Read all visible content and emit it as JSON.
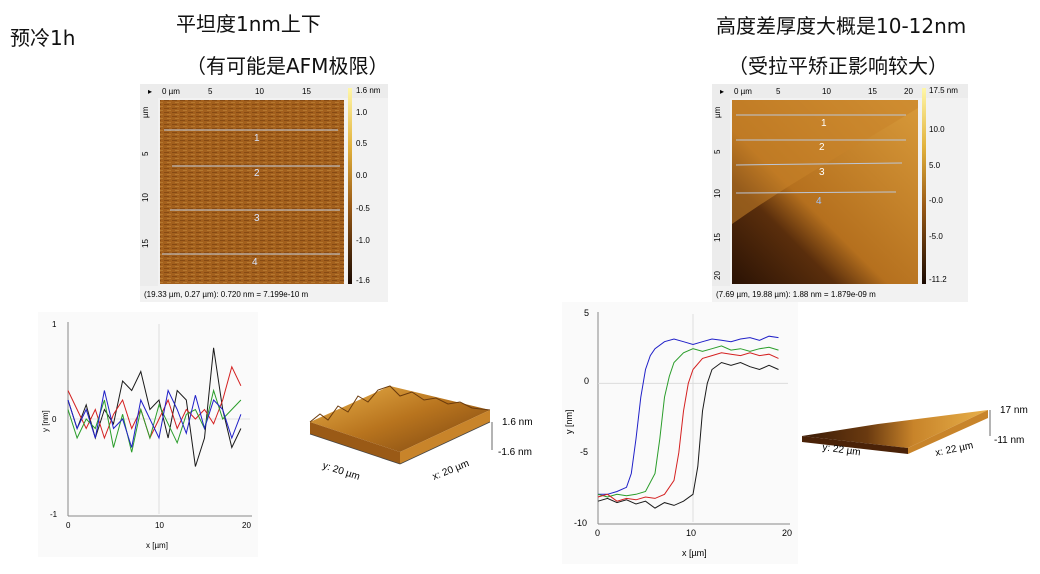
{
  "page": {
    "top_left_label": "预冷1h",
    "left_title_1": "平坦度1nm上下",
    "left_title_2": "（有可能是AFM极限）",
    "right_title_1": "高度差厚度大概是10-12nm",
    "right_title_2": "（受拉平矫正影响较大）"
  },
  "left_afm": {
    "x_ruler": [
      "0 µm",
      "5",
      "10",
      "15"
    ],
    "y_ruler": [
      "µm",
      "5",
      "10",
      "15"
    ],
    "scale_ticks": [
      "1.6 nm",
      "1.0",
      "0.5",
      "0.0",
      "-0.5",
      "-1.0",
      "-1.6"
    ],
    "line_labels": [
      "1",
      "2",
      "3",
      "4"
    ],
    "status": "(19.33 µm, 0.27 µm): 0.720 nm = 7.199e-10 m"
  },
  "right_afm": {
    "x_ruler": [
      "0 µm",
      "5",
      "10",
      "15",
      "20"
    ],
    "y_ruler": [
      "µm",
      "5",
      "10",
      "15",
      "20"
    ],
    "scale_ticks": [
      "17.5 nm",
      "10.0",
      "5.0",
      "-0.0",
      "-5.0",
      "-11.2"
    ],
    "line_labels": [
      "1",
      "2",
      "3",
      "4"
    ],
    "status": "(7.69 µm, 19.88 µm): 1.88 nm = 1.879e-09 m"
  },
  "left_3d": {
    "top_label": "1.6 nm",
    "bottom_label": "-1.6 nm",
    "y_axis": "y: 20 µm",
    "x_axis": "x: 20 µm"
  },
  "right_3d": {
    "top_label": "17 nm",
    "bottom_label": "-11 nm",
    "y_axis": "y: 22 µm",
    "x_axis": "x: 22 µm"
  },
  "chart_data": [
    {
      "type": "line",
      "title": "",
      "xlabel": "x [µm]",
      "ylabel": "y [nm]",
      "xlim": [
        0,
        20
      ],
      "ylim": [
        -1,
        1
      ],
      "xticks": [
        "0",
        "10",
        "20"
      ],
      "yticks": [
        "-1",
        "0",
        "1"
      ],
      "grid": true,
      "series": [
        {
          "color": "#1a1a1a",
          "x": [
            0,
            1,
            2,
            3,
            4,
            5,
            6,
            7,
            8,
            9,
            10,
            11,
            12,
            13,
            14,
            15,
            16,
            17,
            18,
            19
          ],
          "y": [
            0.2,
            -0.1,
            0.15,
            -0.2,
            0.1,
            -0.05,
            0.4,
            0.3,
            0.5,
            0.1,
            0.2,
            -0.2,
            0.3,
            0.2,
            -0.5,
            -0.2,
            0.75,
            0.1,
            -0.3,
            -0.1
          ]
        },
        {
          "color": "#d42020",
          "x": [
            0,
            1,
            2,
            3,
            4,
            5,
            6,
            7,
            8,
            9,
            10,
            11,
            12,
            13,
            14,
            15,
            16,
            17,
            18,
            19
          ],
          "y": [
            0.3,
            0.1,
            -0.1,
            0.1,
            -0.2,
            0.05,
            0.2,
            -0.1,
            0.1,
            -0.2,
            0.0,
            0.2,
            -0.1,
            0.1,
            0.0,
            0.1,
            -0.05,
            0.2,
            0.55,
            0.35
          ]
        },
        {
          "color": "#2a9d2a",
          "x": [
            0,
            1,
            2,
            3,
            4,
            5,
            6,
            7,
            8,
            9,
            10,
            11,
            12,
            13,
            14,
            15,
            16,
            17,
            18,
            19
          ],
          "y": [
            0.1,
            -0.2,
            0.0,
            -0.1,
            0.2,
            -0.3,
            0.05,
            -0.35,
            0.1,
            -0.2,
            0.15,
            -0.05,
            -0.25,
            0.05,
            0.1,
            -0.1,
            0.3,
            0.0,
            0.1,
            0.2
          ]
        },
        {
          "color": "#2020c8",
          "x": [
            0,
            1,
            2,
            3,
            4,
            5,
            6,
            7,
            8,
            9,
            10,
            11,
            12,
            13,
            14,
            15,
            16,
            17,
            18,
            19
          ],
          "y": [
            0.2,
            -0.1,
            0.1,
            -0.2,
            0.3,
            -0.1,
            0.0,
            -0.3,
            0.2,
            0.0,
            -0.2,
            0.3,
            0.1,
            -0.15,
            0.25,
            -0.1,
            0.2,
            0.1,
            -0.2,
            0.05
          ]
        }
      ]
    },
    {
      "type": "line",
      "title": "",
      "xlabel": "x [µm]",
      "ylabel": "y [nm]",
      "xlim": [
        0,
        20
      ],
      "ylim": [
        -10,
        5
      ],
      "xticks": [
        "0",
        "10",
        "20"
      ],
      "yticks": [
        "-10",
        "-5",
        "0",
        "5"
      ],
      "grid": true,
      "series": [
        {
          "color": "#2020c8",
          "x": [
            0,
            1,
            2,
            3,
            3.5,
            4,
            4.5,
            5,
            5.5,
            6,
            7,
            8,
            9,
            10,
            11,
            12,
            13,
            14,
            15,
            16,
            17,
            18,
            19
          ],
          "y": [
            -8,
            -8,
            -7.8,
            -7.5,
            -6.5,
            -4,
            -1,
            1,
            2,
            2.5,
            3,
            3.2,
            3,
            2.8,
            3,
            3.2,
            3.1,
            3,
            3.2,
            3.3,
            3.1,
            3.4,
            3.3
          ]
        },
        {
          "color": "#2a9d2a",
          "x": [
            0,
            1,
            2,
            3,
            4,
            5,
            6,
            6.5,
            7,
            7.5,
            8,
            9,
            10,
            11,
            12,
            13,
            14,
            15,
            16,
            17,
            18,
            19
          ],
          "y": [
            -8,
            -8.2,
            -8,
            -8.1,
            -8,
            -7.8,
            -6.5,
            -4,
            -1,
            0.5,
            1.5,
            2.2,
            2.5,
            2.3,
            2.5,
            2.7,
            2.4,
            2.5,
            2.3,
            2.5,
            2.6,
            2.4
          ]
        },
        {
          "color": "#d42020",
          "x": [
            0,
            1,
            2,
            3,
            4,
            5,
            6,
            7,
            8,
            8.5,
            9,
            9.5,
            10,
            11,
            12,
            13,
            14,
            15,
            16,
            17,
            18,
            19
          ],
          "y": [
            -8.2,
            -8,
            -8.5,
            -8.3,
            -8.4,
            -8.2,
            -8.3,
            -8,
            -7,
            -5,
            -2,
            0,
            1,
            1.8,
            2,
            2.2,
            2.1,
            2,
            2.2,
            2,
            2.1,
            1.8
          ]
        },
        {
          "color": "#1a1a1a",
          "x": [
            0,
            1,
            2,
            3,
            4,
            5,
            6,
            7,
            8,
            9,
            10,
            10.5,
            11,
            11.5,
            12,
            13,
            14,
            15,
            16,
            17,
            18,
            19
          ],
          "y": [
            -8.5,
            -8.3,
            -8.6,
            -8.4,
            -8.7,
            -8.5,
            -9,
            -8.6,
            -8.8,
            -8.5,
            -8,
            -6,
            -2,
            0,
            1,
            1.5,
            1.3,
            1.5,
            1.2,
            1.0,
            1.3,
            1.0
          ]
        }
      ]
    }
  ]
}
